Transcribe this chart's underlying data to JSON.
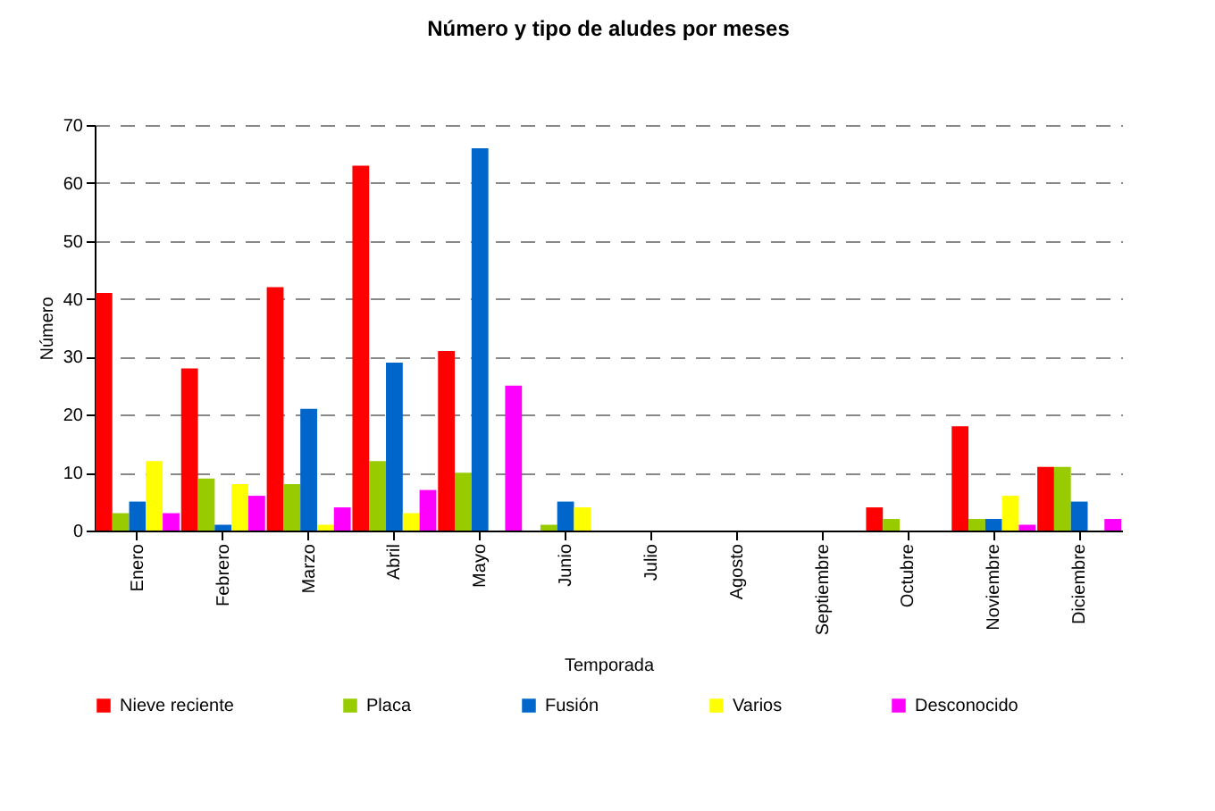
{
  "chart_data": {
    "type": "bar",
    "title": "Número y tipo de aludes por meses",
    "xlabel": "Temporada",
    "ylabel": "Número",
    "categories": [
      "Enero",
      "Febrero",
      "Marzo",
      "Abril",
      "Mayo",
      "Junio",
      "Julio",
      "Agosto",
      "Septiembre",
      "Octubre",
      "Noviembre",
      "Diciembre"
    ],
    "series": [
      {
        "name": "Nieve reciente",
        "color": "#ff0000",
        "values": [
          41,
          28,
          42,
          63,
          31,
          0,
          0,
          0,
          0,
          4,
          18,
          11
        ]
      },
      {
        "name": "Placa",
        "color": "#99cc00",
        "values": [
          3,
          9,
          8,
          12,
          10,
          1,
          0,
          0,
          0,
          2,
          2,
          11
        ]
      },
      {
        "name": "Fusión",
        "color": "#0066cc",
        "values": [
          5,
          1,
          21,
          29,
          66,
          5,
          0,
          0,
          0,
          0,
          2,
          5
        ]
      },
      {
        "name": "Varios",
        "color": "#ffff00",
        "values": [
          12,
          8,
          1,
          3,
          0,
          4,
          0,
          0,
          0,
          0,
          6,
          0
        ]
      },
      {
        "name": "Desconocido",
        "color": "#ff00ff",
        "values": [
          3,
          6,
          4,
          7,
          25,
          0,
          0,
          0,
          0,
          0,
          1,
          2
        ]
      }
    ],
    "ylim": [
      0,
      70
    ],
    "yticks": [
      0,
      10,
      20,
      30,
      40,
      50,
      60,
      70
    ],
    "grid": "y",
    "legend": "bottom"
  }
}
